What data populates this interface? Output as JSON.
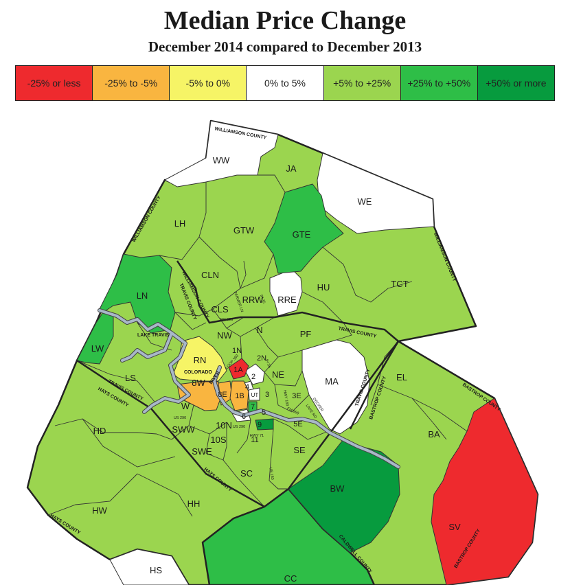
{
  "title": "Median Price Change",
  "subtitle": "December 2014 compared to December 2013",
  "legend": [
    {
      "label": "-25% or less",
      "color": "#ee2a2e"
    },
    {
      "label": "-25% to -5%",
      "color": "#f9b540"
    },
    {
      "label": "-5% to 0%",
      "color": "#f6f466"
    },
    {
      "label": "0% to 5%",
      "color": "#ffffff"
    },
    {
      "label": "+5% to +25%",
      "color": "#9bd54f"
    },
    {
      "label": "+25% to +50%",
      "color": "#2ebe47"
    },
    {
      "label": "+50% or more",
      "color": "#079b3e"
    }
  ],
  "map": {
    "areas": {
      "WW": "WW",
      "JA": "JA",
      "WE": "WE",
      "LH": "LH",
      "GTW": "GTW",
      "GTE": "GTE",
      "CLN": "CLN",
      "TCT": "TCT",
      "LN": "LN",
      "CLS": "CLS",
      "RRW": "RRW",
      "RRE": "RRE",
      "HU": "HU",
      "NW": "NW",
      "N": "N",
      "PF": "PF",
      "LW": "LW",
      "RN": "RN",
      "1N": "1N",
      "2N": "2N",
      "1A": "1A",
      "2": "2",
      "NE": "NE",
      "MA": "MA",
      "EL": "EL",
      "4": "4",
      "8W": "8W",
      "8E": "8E",
      "1B": "1B",
      "UT": "UT",
      "3": "3",
      "3E": "3E",
      "LS": "LS",
      "W": "W",
      "7": "7",
      "5": "5",
      "6": "6",
      "9": "9",
      "5E": "5E",
      "10N": "10N",
      "SWW": "SWW",
      "10S": "10S",
      "11": "11",
      "HD": "HD",
      "BA": "BA",
      "SWE": "SWE",
      "SE": "SE",
      "SC": "SC",
      "BW": "BW",
      "HW": "HW",
      "HH": "HH",
      "SV": "SV",
      "HS": "HS",
      "CC": "CC"
    },
    "counties": {
      "williamson_top": "WILLIAMSON COUNTY",
      "williamson_left": "WILLIAMSON COUNTY",
      "williamson_right": "WILLIAMSON COUNTY",
      "williamson_mid": "WILLIAMSON COUNTY",
      "travis_mid": "TRAVIS COUNTY",
      "travis_right": "TRAVIS COUNTY",
      "travis_vert": "TRAVIS COUNTY",
      "travis_left": "TRAVIS COUNTY",
      "hays_left": "HAYS COUNTY",
      "hays_mid": "HAYS COUNTY",
      "hays_bottom": "HAYS COUNTY",
      "bastrop_top": "BASTROP COUNTY",
      "bastrop_left": "BASTROP COUNTY",
      "bastrop_bottom": "BASTROP COUNTY",
      "caldwell": "CALDWELL COUNTY"
    },
    "features": {
      "lake_travis": "LAKE TRAVIS",
      "colorado": "COLORADO",
      "river": "RIVER",
      "us290_w": "US 290",
      "us290_e": "US 290",
      "parmer": "PARMER LN",
      "fm620": "FM 620",
      "loop360": "LOOP 360",
      "i35_n": "IH 35",
      "i35_s": "IH 35",
      "mopac": "MOPAC",
      "us183_n": "US 183",
      "us183_s": "US 183",
      "sh71": "SH 71",
      "fm969": "FM 969",
      "decker": "DECKER",
      "lake_rd": "LAKE RD",
      "hwy183": "HWY 183",
      "hwy71": "HWY 71"
    }
  }
}
